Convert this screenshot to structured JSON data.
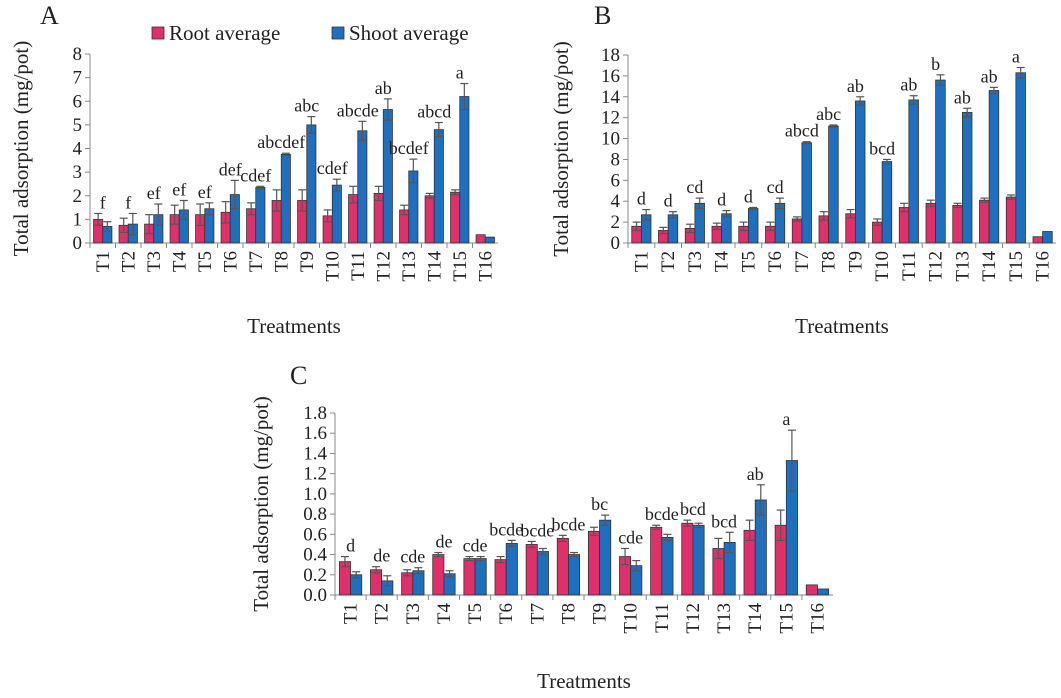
{
  "chart_data": [
    {
      "type": "bar",
      "title": "A",
      "ylabel": "Total adsorption (mg/pot)",
      "xlabel": "Treatments",
      "categories": [
        "T1",
        "T2",
        "T3",
        "T4",
        "T5",
        "T6",
        "T7",
        "T8",
        "T9",
        "T10",
        "T11",
        "T12",
        "T13",
        "T14",
        "T15",
        "T16"
      ],
      "series": [
        {
          "name": "Root average",
          "color": "#e0306a",
          "values": [
            1.0,
            0.75,
            0.8,
            1.2,
            1.2,
            1.3,
            1.45,
            1.8,
            1.8,
            1.15,
            2.05,
            2.1,
            1.4,
            2.0,
            2.15,
            0.35
          ],
          "errors": [
            0.25,
            0.3,
            0.4,
            0.4,
            0.45,
            0.45,
            0.25,
            0.45,
            0.45,
            0.25,
            0.35,
            0.3,
            0.2,
            0.1,
            0.1,
            null
          ]
        },
        {
          "name": "Shoot average",
          "color": "#1f6fc0",
          "values": [
            0.7,
            0.8,
            1.2,
            1.4,
            1.45,
            2.05,
            2.35,
            3.75,
            5.0,
            2.45,
            4.75,
            5.65,
            3.05,
            4.8,
            6.2,
            0.25
          ],
          "errors": [
            0.2,
            0.45,
            0.45,
            0.4,
            0.25,
            0.6,
            0.05,
            0.05,
            0.35,
            0.25,
            0.4,
            0.45,
            0.5,
            0.3,
            0.55,
            null
          ]
        }
      ],
      "letters": [
        "f",
        "f",
        "ef",
        "ef",
        "ef",
        "def",
        "cdef",
        "abcdef",
        "abc",
        "cdef",
        "abcde",
        "ab",
        "bcdef",
        "abcd",
        "a",
        null
      ],
      "ylim": [
        0,
        8
      ],
      "yticks": [
        0,
        1,
        2,
        3,
        4,
        5,
        6,
        7,
        8
      ],
      "legend": true
    },
    {
      "type": "bar",
      "title": "B",
      "ylabel": "Total adsorption (mg/pot)",
      "xlabel": "Treatments",
      "categories": [
        "T1",
        "T2",
        "T3",
        "T4",
        "T5",
        "T6",
        "T7",
        "T8",
        "T9",
        "T10",
        "T11",
        "T12",
        "T13",
        "T14",
        "T15",
        "T16"
      ],
      "series": [
        {
          "color": "#e0306a",
          "values": [
            1.6,
            1.2,
            1.4,
            1.6,
            1.6,
            1.6,
            2.3,
            2.6,
            2.8,
            2.0,
            3.4,
            3.8,
            3.6,
            4.1,
            4.4,
            0.6
          ],
          "errors": [
            0.4,
            0.3,
            0.4,
            0.3,
            0.4,
            0.4,
            0.2,
            0.4,
            0.4,
            0.3,
            0.4,
            0.3,
            0.2,
            0.2,
            0.2,
            null
          ]
        },
        {
          "color": "#1f6fc0",
          "values": [
            2.7,
            2.7,
            3.8,
            2.8,
            3.3,
            3.8,
            9.6,
            11.2,
            13.6,
            7.8,
            13.7,
            15.6,
            12.5,
            14.6,
            16.3,
            1.1
          ],
          "errors": [
            0.5,
            0.3,
            0.5,
            0.3,
            0.1,
            0.5,
            0.1,
            0.1,
            0.4,
            0.2,
            0.4,
            0.5,
            0.4,
            0.3,
            0.5,
            null
          ]
        }
      ],
      "letters": [
        "d",
        "d",
        "cd",
        "d",
        "d",
        "cd",
        "abcd",
        "abc",
        "ab",
        "bcd",
        "ab",
        "b",
        "ab",
        "ab",
        "a",
        null
      ],
      "ylim": [
        0,
        18
      ],
      "yticks": [
        0,
        2,
        4,
        6,
        8,
        10,
        12,
        14,
        16,
        18
      ],
      "legend": false
    },
    {
      "type": "bar",
      "title": "C",
      "ylabel": "Total adsorption (mg/pot)",
      "xlabel": "Treatments",
      "categories": [
        "T1",
        "T2",
        "T3",
        "T4",
        "T5",
        "T6",
        "T7",
        "T8",
        "T9",
        "T10",
        "T11",
        "T12",
        "T13",
        "T14",
        "T15",
        "T16"
      ],
      "series": [
        {
          "color": "#e0306a",
          "values": [
            0.33,
            0.25,
            0.22,
            0.4,
            0.36,
            0.35,
            0.5,
            0.56,
            0.63,
            0.38,
            0.67,
            0.71,
            0.46,
            0.64,
            0.69,
            0.1
          ],
          "errors": [
            0.05,
            0.03,
            0.03,
            0.02,
            0.02,
            0.03,
            0.03,
            0.03,
            0.04,
            0.08,
            0.02,
            0.03,
            0.1,
            0.1,
            0.15,
            null
          ]
        },
        {
          "color": "#1f6fc0",
          "values": [
            0.2,
            0.14,
            0.24,
            0.21,
            0.36,
            0.51,
            0.43,
            0.4,
            0.74,
            0.29,
            0.57,
            0.69,
            0.52,
            0.94,
            1.33,
            0.06
          ],
          "errors": [
            0.03,
            0.05,
            0.03,
            0.03,
            0.02,
            0.03,
            0.03,
            0.02,
            0.05,
            0.05,
            0.03,
            0.02,
            0.1,
            0.15,
            0.3,
            null
          ]
        }
      ],
      "letters": [
        "d",
        "de",
        "cde",
        "de",
        "cde",
        "bcde",
        "bcde",
        "bcde",
        "bc",
        "cde",
        "bcde",
        "bcd",
        "bcd",
        "ab",
        "a",
        null
      ],
      "ylim": [
        0,
        1.8
      ],
      "yticks": [
        {
          "value": 0,
          "label": "0.0"
        },
        0.2,
        0.4,
        0.6,
        0.8,
        {
          "value": 1,
          "label": "1.0"
        },
        1.2,
        1.4,
        1.6,
        1.8
      ],
      "legend": false
    }
  ]
}
